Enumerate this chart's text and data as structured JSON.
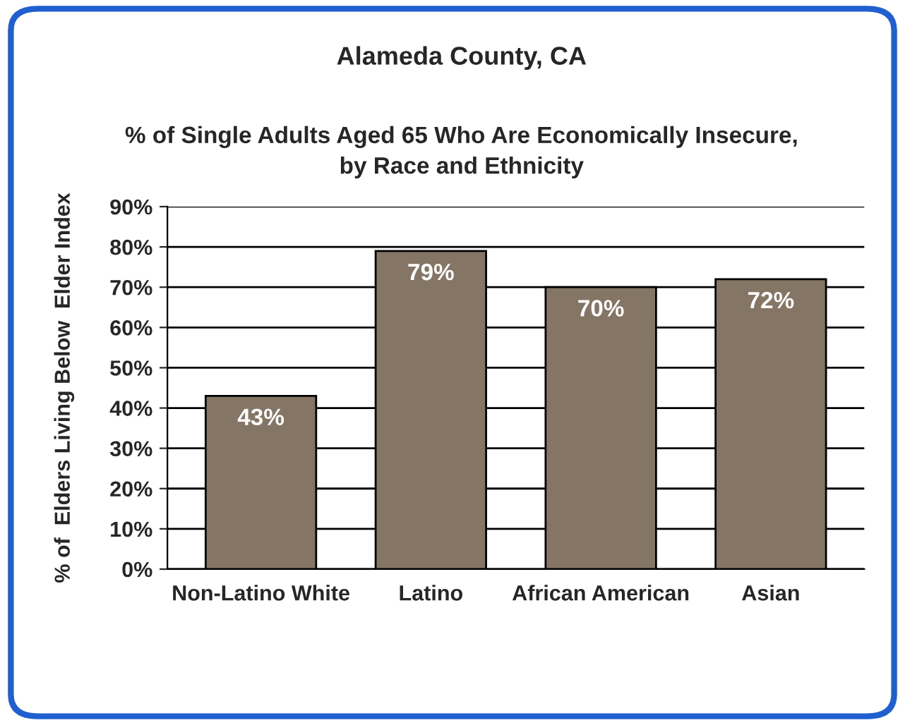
{
  "chart_data": {
    "type": "bar",
    "title": "Alameda County, CA",
    "subtitle": "% of Single Adults Aged 65 Who Are Economically Insecure,\nby Race and Ethnicity",
    "ylabel": "% of  Elders Living Below  Elder Index",
    "categories": [
      "Non-Latino White",
      "Latino",
      "African American",
      "Asian"
    ],
    "values": [
      43,
      79,
      70,
      72
    ],
    "color": "#857565",
    "data_labels": true,
    "value_labels": [
      "43%",
      "79%",
      "70%",
      "72%"
    ],
    "ylim": [
      0,
      90
    ],
    "yticks": [
      {
        "value": 0,
        "label": "0%"
      },
      {
        "value": 10,
        "label": "10%"
      },
      {
        "value": 20,
        "label": "20%"
      },
      {
        "value": 30,
        "label": "30%"
      },
      {
        "value": 40,
        "label": "40%"
      },
      {
        "value": 50,
        "label": "50%"
      },
      {
        "value": 60,
        "label": "60%"
      },
      {
        "value": 70,
        "label": "70%"
      },
      {
        "value": 80,
        "label": "80%"
      },
      {
        "value": 90,
        "label": "90%"
      }
    ],
    "grid": "y",
    "legend": false
  }
}
